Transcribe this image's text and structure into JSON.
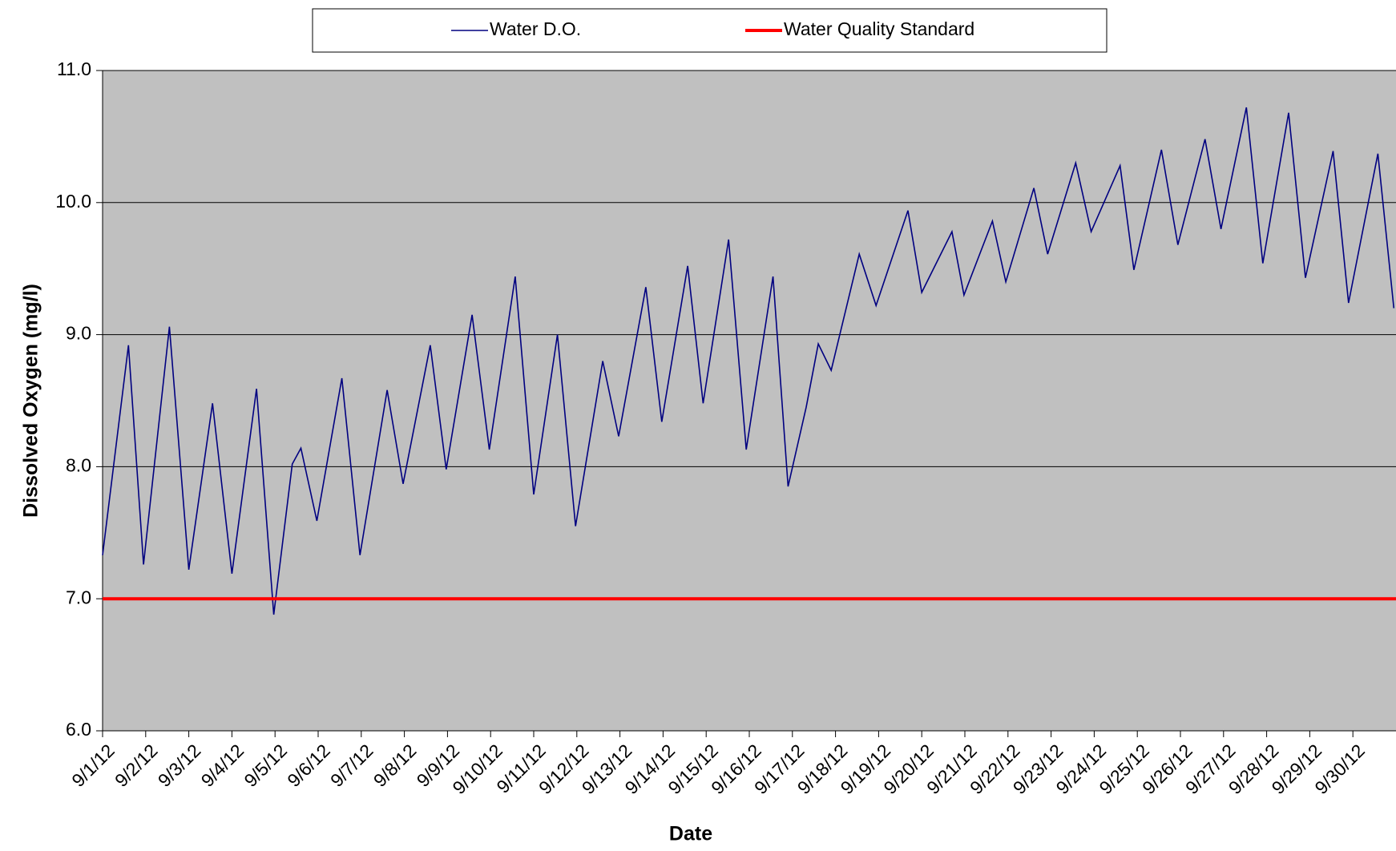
{
  "chart_data": {
    "type": "line",
    "xlabel": "Date",
    "ylabel": "Dissolved Oxygen (mg/l)",
    "xlim": [
      0,
      30
    ],
    "ylim": [
      6,
      11
    ],
    "yticks": [
      {
        "value": 6,
        "label": "6.0"
      },
      {
        "value": 7,
        "label": "7.0"
      },
      {
        "value": 8,
        "label": "8.0"
      },
      {
        "value": 9,
        "label": "9.0"
      },
      {
        "value": 10,
        "label": "10.0"
      },
      {
        "value": 11,
        "label": "11.0"
      }
    ],
    "xticks": [
      {
        "value": 0,
        "label": "9/1/12"
      },
      {
        "value": 1,
        "label": "9/2/12"
      },
      {
        "value": 2,
        "label": "9/3/12"
      },
      {
        "value": 3,
        "label": "9/4/12"
      },
      {
        "value": 4,
        "label": "9/5/12"
      },
      {
        "value": 5,
        "label": "9/6/12"
      },
      {
        "value": 6,
        "label": "9/7/12"
      },
      {
        "value": 7,
        "label": "9/8/12"
      },
      {
        "value": 8,
        "label": "9/9/12"
      },
      {
        "value": 9,
        "label": "9/10/12"
      },
      {
        "value": 10,
        "label": "9/11/12"
      },
      {
        "value": 11,
        "label": "9/12/12"
      },
      {
        "value": 12,
        "label": "9/13/12"
      },
      {
        "value": 13,
        "label": "9/14/12"
      },
      {
        "value": 14,
        "label": "9/15/12"
      },
      {
        "value": 15,
        "label": "9/16/12"
      },
      {
        "value": 16,
        "label": "9/17/12"
      },
      {
        "value": 17,
        "label": "9/18/12"
      },
      {
        "value": 18,
        "label": "9/19/12"
      },
      {
        "value": 19,
        "label": "9/20/12"
      },
      {
        "value": 20,
        "label": "9/21/12"
      },
      {
        "value": 21,
        "label": "9/22/12"
      },
      {
        "value": 22,
        "label": "9/23/12"
      },
      {
        "value": 23,
        "label": "9/24/12"
      },
      {
        "value": 24,
        "label": "9/25/12"
      },
      {
        "value": 25,
        "label": "9/26/12"
      },
      {
        "value": 26,
        "label": "9/27/12"
      },
      {
        "value": 27,
        "label": "9/28/12"
      },
      {
        "value": 28,
        "label": "9/29/12"
      },
      {
        "value": 29,
        "label": "9/30/12"
      }
    ],
    "grid": true,
    "background": "#c0c0c0",
    "series": [
      {
        "name": "Water D.O.",
        "color": "#000080",
        "x": [
          0,
          0.6,
          0.95,
          1.55,
          2.0,
          2.55,
          3.0,
          3.57,
          3.97,
          4.4,
          4.6,
          4.97,
          5.55,
          5.97,
          6.6,
          6.97,
          7.6,
          7.97,
          8.57,
          8.97,
          9.57,
          10.0,
          10.55,
          10.97,
          11.6,
          11.97,
          12.6,
          12.97,
          13.57,
          13.93,
          14.52,
          14.93,
          15.55,
          15.9,
          16.32,
          16.6,
          16.9,
          17.55,
          17.94,
          18.68,
          19.0,
          19.7,
          19.98,
          20.64,
          20.95,
          21.6,
          21.92,
          22.57,
          22.93,
          23.6,
          23.92,
          24.56,
          24.94,
          25.57,
          25.94,
          26.53,
          26.91,
          27.51,
          27.9,
          28.54,
          28.9,
          29.58,
          29.95
        ],
        "values": [
          7.33,
          8.92,
          7.26,
          9.06,
          7.22,
          8.48,
          7.19,
          8.59,
          6.88,
          8.02,
          8.14,
          7.59,
          8.67,
          7.33,
          8.58,
          7.87,
          8.92,
          7.98,
          9.15,
          8.13,
          9.44,
          7.79,
          9.0,
          7.55,
          8.8,
          8.23,
          9.36,
          8.34,
          9.52,
          8.48,
          9.72,
          8.13,
          9.44,
          7.85,
          8.45,
          8.93,
          8.73,
          9.61,
          9.22,
          9.94,
          9.32,
          9.78,
          9.3,
          9.86,
          9.4,
          10.11,
          9.61,
          10.3,
          9.78,
          10.28,
          9.49,
          10.4,
          9.68,
          10.48,
          9.8,
          10.72,
          9.54,
          10.68,
          9.43,
          10.39,
          9.24,
          10.37,
          9.2
        ]
      },
      {
        "name": "Water Quality Standard",
        "color": "#ff0000",
        "x": [
          0,
          30
        ],
        "values": [
          7,
          7
        ]
      }
    ]
  }
}
